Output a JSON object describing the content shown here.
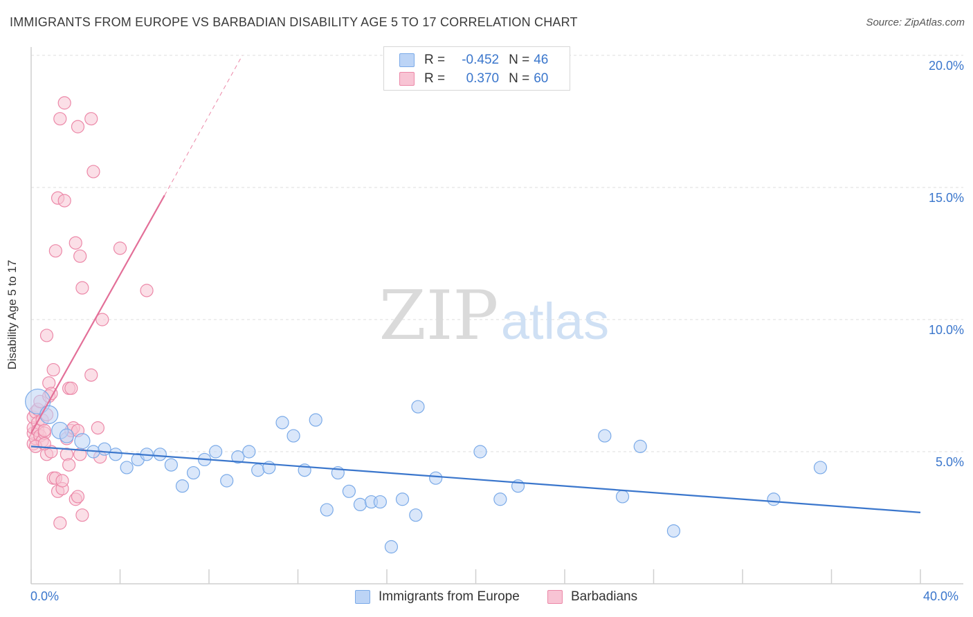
{
  "header": {
    "title": "IMMIGRANTS FROM EUROPE VS BARBADIAN DISABILITY AGE 5 TO 17 CORRELATION CHART",
    "source": "Source: ZipAtlas.com"
  },
  "watermark": {
    "zip": "ZIP",
    "atlas": "atlas"
  },
  "legend_top": [
    {
      "label": "R =",
      "r": "-0.452",
      "n_label": "N =",
      "n": "46",
      "color": "#7aaae8",
      "fill": "#bcd4f6"
    },
    {
      "label": "R =",
      "r": "0.370",
      "n_label": "N =",
      "n": "60",
      "color": "#ec88a8",
      "fill": "#f8c4d4"
    }
  ],
  "legend_bottom": [
    {
      "label": "Immigrants from Europe",
      "color": "#7aaae8",
      "fill": "#bcd4f6"
    },
    {
      "label": "Barbadians",
      "color": "#ec88a8",
      "fill": "#f8c4d4"
    }
  ],
  "chart_data": {
    "type": "scatter",
    "title": "IMMIGRANTS FROM EUROPE VS BARBADIAN DISABILITY AGE 5 TO 17 CORRELATION CHART",
    "xlabel": "",
    "ylabel": "Disability Age 5 to 17",
    "xlim": [
      0,
      40
    ],
    "ylim": [
      0,
      20.5
    ],
    "x_tick_labels": {
      "min": "0.0%",
      "max": "40.0%"
    },
    "y_ticks": [
      5,
      10,
      15,
      20
    ],
    "y_tick_labels": [
      "5.0%",
      "10.0%",
      "15.0%",
      "20.0%"
    ],
    "series": [
      {
        "name": "Immigrants from Europe",
        "color": "#3a76cc",
        "fill": "#bcd4f6",
        "stroke": "#7aaae8",
        "points": [
          {
            "x": 0.3,
            "y": 6.9,
            "size": 18
          },
          {
            "x": 0.8,
            "y": 6.4,
            "size": 13
          },
          {
            "x": 1.3,
            "y": 5.8,
            "size": 12
          },
          {
            "x": 1.6,
            "y": 5.6,
            "size": 10
          },
          {
            "x": 2.3,
            "y": 5.4,
            "size": 11
          },
          {
            "x": 2.8,
            "y": 5.0,
            "size": 9
          },
          {
            "x": 3.3,
            "y": 5.1,
            "size": 9
          },
          {
            "x": 3.8,
            "y": 4.9,
            "size": 9
          },
          {
            "x": 4.3,
            "y": 4.4,
            "size": 9
          },
          {
            "x": 4.8,
            "y": 4.7,
            "size": 9
          },
          {
            "x": 5.2,
            "y": 4.9,
            "size": 9
          },
          {
            "x": 5.8,
            "y": 4.9,
            "size": 9
          },
          {
            "x": 6.3,
            "y": 4.5,
            "size": 9
          },
          {
            "x": 6.8,
            "y": 3.7,
            "size": 9
          },
          {
            "x": 7.3,
            "y": 4.2,
            "size": 9
          },
          {
            "x": 7.8,
            "y": 4.7,
            "size": 9
          },
          {
            "x": 8.3,
            "y": 5.0,
            "size": 9
          },
          {
            "x": 8.8,
            "y": 3.9,
            "size": 9
          },
          {
            "x": 9.3,
            "y": 4.8,
            "size": 9
          },
          {
            "x": 9.8,
            "y": 5.0,
            "size": 9
          },
          {
            "x": 10.2,
            "y": 4.3,
            "size": 9
          },
          {
            "x": 10.7,
            "y": 4.4,
            "size": 9
          },
          {
            "x": 11.3,
            "y": 6.1,
            "size": 9
          },
          {
            "x": 11.8,
            "y": 5.6,
            "size": 9
          },
          {
            "x": 12.3,
            "y": 4.3,
            "size": 9
          },
          {
            "x": 12.8,
            "y": 6.2,
            "size": 9
          },
          {
            "x": 13.3,
            "y": 2.8,
            "size": 9
          },
          {
            "x": 13.8,
            "y": 4.2,
            "size": 9
          },
          {
            "x": 14.3,
            "y": 3.5,
            "size": 9
          },
          {
            "x": 14.8,
            "y": 3.0,
            "size": 9
          },
          {
            "x": 15.3,
            "y": 3.1,
            "size": 9
          },
          {
            "x": 15.7,
            "y": 3.1,
            "size": 9
          },
          {
            "x": 16.2,
            "y": 1.4,
            "size": 9
          },
          {
            "x": 16.7,
            "y": 3.2,
            "size": 9
          },
          {
            "x": 17.3,
            "y": 2.6,
            "size": 9
          },
          {
            "x": 17.4,
            "y": 6.7,
            "size": 9
          },
          {
            "x": 18.2,
            "y": 4.0,
            "size": 9
          },
          {
            "x": 20.2,
            "y": 5.0,
            "size": 9
          },
          {
            "x": 21.1,
            "y": 3.2,
            "size": 9
          },
          {
            "x": 21.9,
            "y": 3.7,
            "size": 9
          },
          {
            "x": 25.8,
            "y": 5.6,
            "size": 9
          },
          {
            "x": 26.6,
            "y": 3.3,
            "size": 9
          },
          {
            "x": 27.4,
            "y": 5.2,
            "size": 9
          },
          {
            "x": 28.9,
            "y": 2.0,
            "size": 9
          },
          {
            "x": 33.4,
            "y": 3.2,
            "size": 9
          },
          {
            "x": 35.5,
            "y": 4.4,
            "size": 9
          }
        ],
        "trend": {
          "x": [
            0,
            40
          ],
          "y": [
            5.2,
            2.7
          ]
        }
      },
      {
        "name": "Barbadians",
        "color": "#e36f98",
        "fill": "#f8c4d4",
        "stroke": "#ec88a8",
        "points": [
          {
            "x": 0.1,
            "y": 5.3
          },
          {
            "x": 0.1,
            "y": 5.7
          },
          {
            "x": 0.1,
            "y": 5.9
          },
          {
            "x": 0.1,
            "y": 6.3
          },
          {
            "x": 0.2,
            "y": 6.5
          },
          {
            "x": 0.2,
            "y": 5.5
          },
          {
            "x": 0.3,
            "y": 6.1
          },
          {
            "x": 0.3,
            "y": 5.8
          },
          {
            "x": 0.3,
            "y": 6.6
          },
          {
            "x": 0.4,
            "y": 5.6
          },
          {
            "x": 0.4,
            "y": 6.9
          },
          {
            "x": 0.5,
            "y": 5.4
          },
          {
            "x": 0.5,
            "y": 6.2
          },
          {
            "x": 0.6,
            "y": 5.7
          },
          {
            "x": 0.6,
            "y": 5.8
          },
          {
            "x": 0.7,
            "y": 6.4
          },
          {
            "x": 0.7,
            "y": 9.4
          },
          {
            "x": 0.7,
            "y": 4.9
          },
          {
            "x": 0.8,
            "y": 7.6
          },
          {
            "x": 0.8,
            "y": 7.1
          },
          {
            "x": 0.9,
            "y": 7.2
          },
          {
            "x": 0.9,
            "y": 5.0
          },
          {
            "x": 1.0,
            "y": 4.0
          },
          {
            "x": 1.0,
            "y": 8.1
          },
          {
            "x": 1.1,
            "y": 12.6
          },
          {
            "x": 1.1,
            "y": 4.0
          },
          {
            "x": 1.2,
            "y": 14.6
          },
          {
            "x": 1.2,
            "y": 3.5
          },
          {
            "x": 1.3,
            "y": 2.3
          },
          {
            "x": 1.3,
            "y": 17.6
          },
          {
            "x": 1.4,
            "y": 3.6
          },
          {
            "x": 1.4,
            "y": 3.9
          },
          {
            "x": 1.5,
            "y": 14.5
          },
          {
            "x": 1.5,
            "y": 18.2
          },
          {
            "x": 1.6,
            "y": 4.9
          },
          {
            "x": 1.6,
            "y": 5.5
          },
          {
            "x": 1.7,
            "y": 7.4
          },
          {
            "x": 1.7,
            "y": 4.5
          },
          {
            "x": 1.8,
            "y": 7.4
          },
          {
            "x": 1.8,
            "y": 5.8
          },
          {
            "x": 1.9,
            "y": 5.9
          },
          {
            "x": 2.0,
            "y": 12.9
          },
          {
            "x": 2.0,
            "y": 3.2
          },
          {
            "x": 2.1,
            "y": 3.3
          },
          {
            "x": 2.1,
            "y": 5.8
          },
          {
            "x": 2.1,
            "y": 17.3
          },
          {
            "x": 2.2,
            "y": 12.4
          },
          {
            "x": 2.2,
            "y": 4.9
          },
          {
            "x": 2.3,
            "y": 11.2
          },
          {
            "x": 2.3,
            "y": 2.6
          },
          {
            "x": 2.7,
            "y": 17.6
          },
          {
            "x": 2.7,
            "y": 7.9
          },
          {
            "x": 2.8,
            "y": 15.6
          },
          {
            "x": 3.0,
            "y": 5.9
          },
          {
            "x": 3.1,
            "y": 4.8
          },
          {
            "x": 3.2,
            "y": 10.0
          },
          {
            "x": 4.0,
            "y": 12.7
          },
          {
            "x": 5.2,
            "y": 11.1
          },
          {
            "x": 0.2,
            "y": 5.2
          },
          {
            "x": 0.6,
            "y": 5.3
          }
        ],
        "trend": {
          "x": [
            0,
            6.0
          ],
          "y": [
            5.7,
            14.7
          ]
        },
        "trend_extension": {
          "x": [
            6.0,
            9.5
          ],
          "y": [
            14.7,
            20.0
          ]
        }
      }
    ]
  }
}
